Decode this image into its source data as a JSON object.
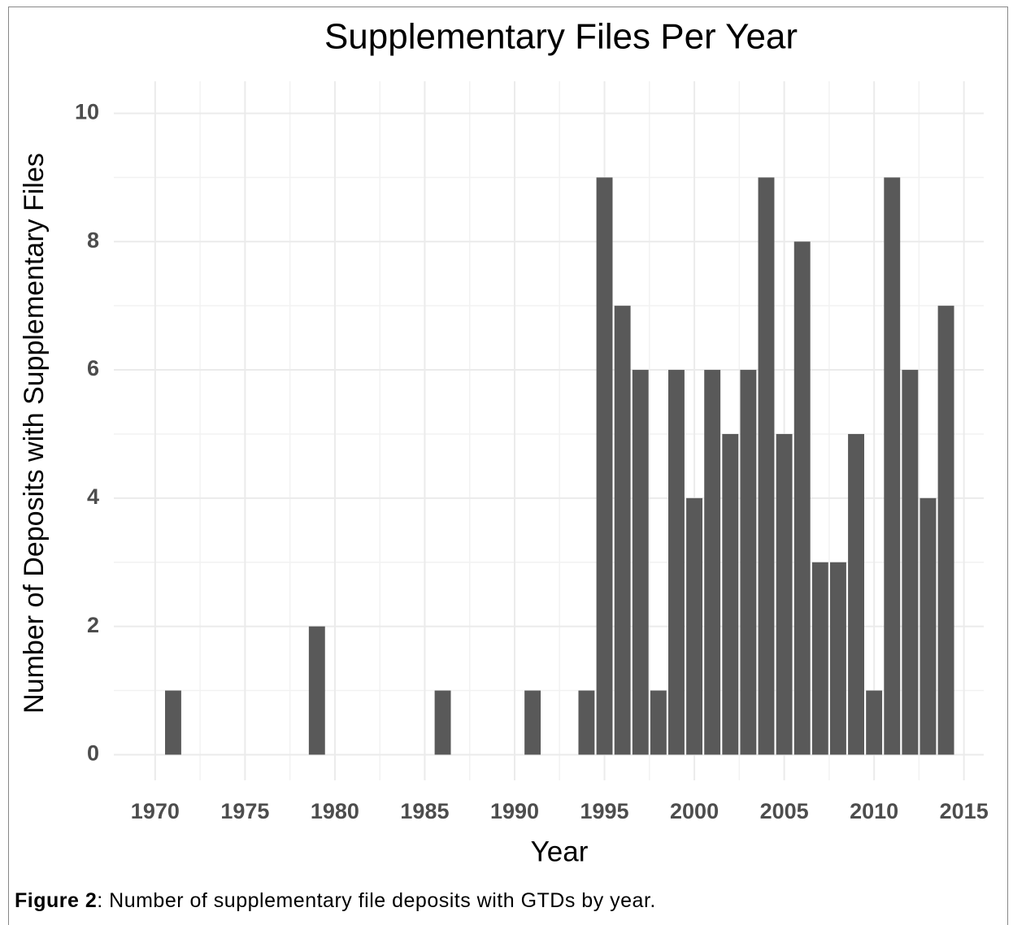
{
  "chart_data": {
    "type": "bar",
    "title": "Supplementary Files Per Year",
    "x_label": "Year",
    "y_label": "Number of Deposits with Supplementary Files",
    "x": [
      1971,
      1979,
      1986,
      1991,
      1994,
      1995,
      1996,
      1997,
      1998,
      1999,
      2000,
      2001,
      2002,
      2003,
      2004,
      2005,
      2006,
      2007,
      2008,
      2009,
      2010,
      2011,
      2012,
      2013,
      2014
    ],
    "values": [
      1,
      2,
      1,
      1,
      1,
      9,
      7,
      6,
      1,
      6,
      4,
      6,
      5,
      6,
      9,
      5,
      8,
      3,
      3,
      5,
      1,
      9,
      6,
      4,
      7
    ],
    "color": "#595959",
    "xlim": [
      1967.7,
      2016.1
    ],
    "xticks": [
      1970,
      1975,
      1980,
      1985,
      1990,
      1995,
      2000,
      2005,
      2010,
      2015
    ],
    "ylim": [
      -0.4,
      10.5
    ],
    "yticks": [
      0,
      2,
      4,
      6,
      8,
      10
    ],
    "grid": true
  },
  "caption": {
    "label": "Figure 2",
    "text": ": Number of supplementary file deposits with GTDs by year."
  }
}
